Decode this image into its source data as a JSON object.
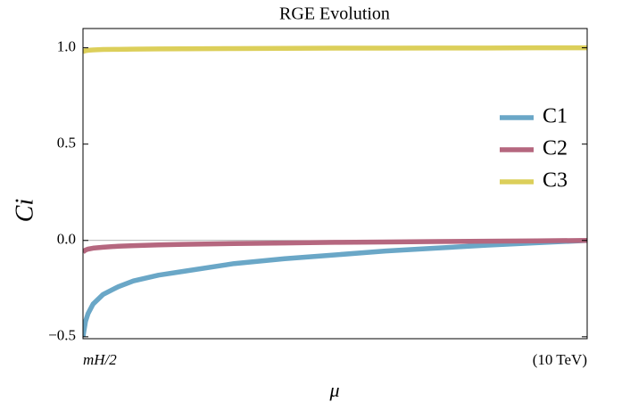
{
  "chart_data": {
    "type": "line",
    "title": "RGE Evolution",
    "x_label": "μ",
    "y_label": "Ci",
    "x": [
      0,
      0.005,
      0.01,
      0.02,
      0.04,
      0.07,
      0.1,
      0.15,
      0.2,
      0.3,
      0.4,
      0.5,
      0.6,
      0.7,
      0.8,
      0.9,
      1.0
    ],
    "series": [
      {
        "name": "C1",
        "color": "#6aa7c7",
        "values": [
          -0.5,
          -0.42,
          -0.38,
          -0.33,
          -0.28,
          -0.24,
          -0.21,
          -0.18,
          -0.16,
          -0.12,
          -0.095,
          -0.075,
          -0.055,
          -0.04,
          -0.025,
          -0.012,
          0
        ]
      },
      {
        "name": "C2",
        "color": "#b5677f",
        "values": [
          -0.06,
          -0.05,
          -0.045,
          -0.04,
          -0.035,
          -0.03,
          -0.027,
          -0.023,
          -0.02,
          -0.016,
          -0.013,
          -0.01,
          -0.008,
          -0.006,
          -0.004,
          -0.002,
          0
        ]
      },
      {
        "name": "C3",
        "color": "#dccf5a",
        "values": [
          0.98,
          0.985,
          0.987,
          0.989,
          0.991,
          0.992,
          0.993,
          0.994,
          0.995,
          0.996,
          0.997,
          0.998,
          0.998,
          0.999,
          0.999,
          1.0,
          1.0
        ]
      }
    ],
    "xlim": [
      0,
      1
    ],
    "xticks": [
      {
        "value": 0,
        "label": "mH/2"
      },
      {
        "value": 1,
        "label": "(10 TeV)"
      }
    ],
    "ylim": [
      -0.51,
      1.1
    ],
    "yticks": [
      {
        "value": -0.5,
        "label": "−0.5"
      },
      {
        "value": 0,
        "label": "0.0"
      },
      {
        "value": 0.5,
        "label": "0.5"
      },
      {
        "value": 1.0,
        "label": "1.0"
      }
    ],
    "hlines": [
      0
    ],
    "legend": "right"
  }
}
